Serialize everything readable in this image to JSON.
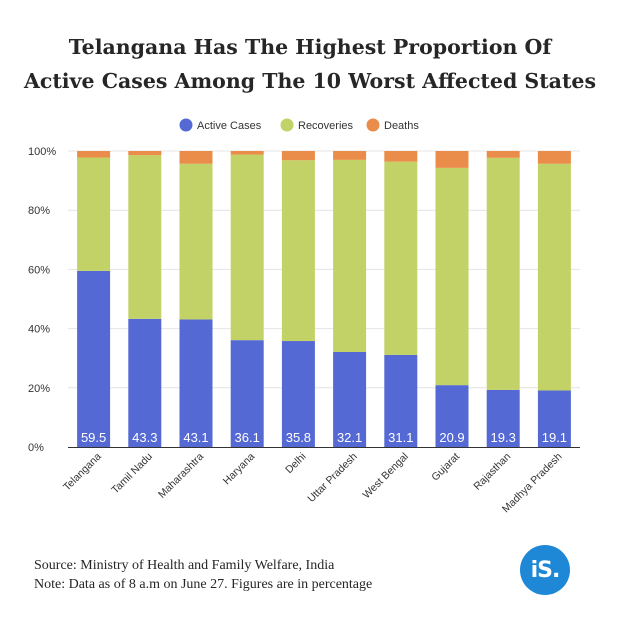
{
  "chart_data": {
    "type": "bar",
    "stacked": true,
    "title_lines": [
      "Telangana Has The Highest Proportion Of",
      "Active Cases Among The 10 Worst Affected States"
    ],
    "categories": [
      "Telangana",
      "Tamil Nadu",
      "Maharashtra",
      "Haryana",
      "Delhi",
      "Uttar Pradesh",
      "West Bengal",
      "Gujarat",
      "Rajasthan",
      "Madhya Pradesh"
    ],
    "series": [
      {
        "name": "Active Cases",
        "color": "#5569d4",
        "values": [
          59.5,
          43.3,
          43.1,
          36.1,
          35.8,
          32.1,
          31.1,
          20.9,
          19.3,
          19.1
        ]
      },
      {
        "name": "Recoveries",
        "color": "#c3d266",
        "values": [
          38.3,
          55.3,
          52.6,
          62.7,
          61.1,
          64.9,
          65.3,
          73.4,
          78.4,
          76.6
        ]
      },
      {
        "name": "Deaths",
        "color": "#eb8d4a",
        "values": [
          2.2,
          1.4,
          4.3,
          1.2,
          3.1,
          3.0,
          3.6,
          5.7,
          2.3,
          4.3
        ]
      }
    ],
    "data_labels": [
      "59.5",
      "43.3",
      "43.1",
      "36.1",
      "35.8",
      "32.1",
      "31.1",
      "20.9",
      "19.3",
      "19.1"
    ],
    "yticks": [
      "0%",
      "20%",
      "40%",
      "60%",
      "80%",
      "100%"
    ],
    "ylim": [
      0,
      100
    ],
    "legend_position": "top-center",
    "grid": true
  },
  "footer": {
    "source": "Source: Ministry of Health and Family Welfare, India",
    "note": "Note: Data as of 8 a.m on June 27. Figures are in percentage"
  },
  "logo": {
    "text": "iS."
  }
}
